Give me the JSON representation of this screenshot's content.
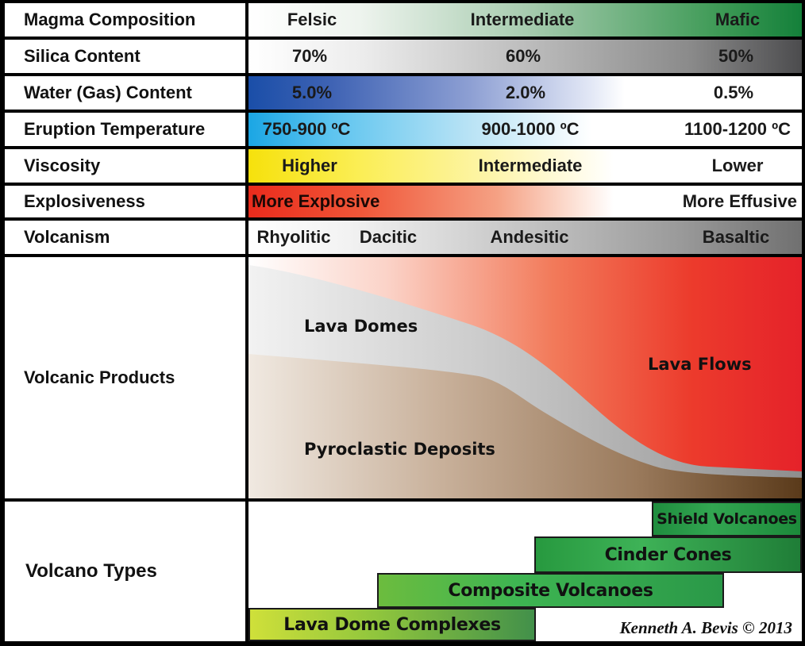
{
  "rows": {
    "magma": {
      "label": "Magma Composition",
      "values": [
        "Felsic",
        "Intermediate",
        "Mafic"
      ]
    },
    "silica": {
      "label": "Silica Content",
      "values": [
        "70%",
        "60%",
        "50%"
      ]
    },
    "water": {
      "label": "Water (Gas) Content",
      "values": [
        "5.0%",
        "2.0%",
        "0.5%"
      ]
    },
    "temperature": {
      "label": "Eruption Temperature",
      "values": [
        "750-900 ºC",
        "900-1000 ºC",
        "1100-1200 ºC"
      ]
    },
    "viscosity": {
      "label": "Viscosity",
      "values": [
        "Higher",
        "Intermediate",
        "Lower"
      ]
    },
    "explosiveness": {
      "label": "Explosiveness",
      "values": [
        "More Explosive",
        "More Effusive"
      ]
    },
    "volcanism": {
      "label": "Volcanism",
      "values": [
        "Rhyolitic",
        "Dacitic",
        "Andesitic",
        "Basaltic"
      ]
    }
  },
  "products": {
    "label": "Volcanic Products",
    "areas": [
      "Lava Domes",
      "Lava Flows",
      "Pyroclastic Deposits"
    ]
  },
  "volcano_types": {
    "label": "Volcano Types",
    "bars": [
      "Shield Volcanoes",
      "Cinder Cones",
      "Composite Volcanoes",
      "Lava Dome Complexes"
    ]
  },
  "credit": "Kenneth A. Bevis © 2013",
  "colors": {
    "mafic_green": "#14803a",
    "water_blue": "#1a4ea8",
    "temperature_cyan": "#1ba6e4",
    "viscosity_yellow": "#f6e10c",
    "explosive_red": "#ea2b1c",
    "lava_flow_red": "#e8262a",
    "pyroclastic_brown": "#6b4a26"
  }
}
